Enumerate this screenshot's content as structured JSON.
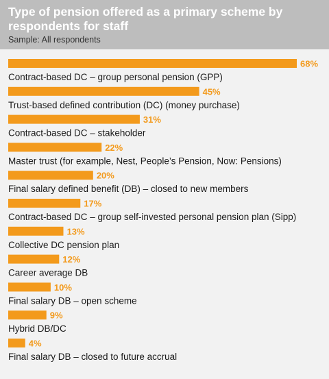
{
  "header": {
    "title": "Type of pension offered as a primary scheme by respondents for staff",
    "subtitle": "Sample: All respondents"
  },
  "colors": {
    "bar": "#f39a1c",
    "value_label": "#f39a1c",
    "header_bg": "#bdbdbd",
    "card_bg": "#f2f2f2"
  },
  "chart_data": {
    "type": "bar",
    "orientation": "horizontal",
    "title": "Type of pension offered as a primary scheme by respondents for staff",
    "subtitle": "Sample: All respondents",
    "categories": [
      "Contract-based DC – group personal pension (GPP)",
      "Trust-based defined contribution (DC) (money purchase)",
      "Contract-based DC – stakeholder",
      "Master trust (for example, Nest, People’s Pension, Now: Pensions)",
      "Final salary defined benefit (DB) – closed to new members",
      "Contract-based DC – group self-invested personal pension plan (Sipp)",
      "Collective DC pension plan",
      "Career average DB",
      "Final salary DB – open scheme",
      "Hybrid DB/DC",
      "Final salary DB – closed to future accrual"
    ],
    "values": [
      68,
      45,
      31,
      22,
      20,
      17,
      13,
      12,
      10,
      9,
      4
    ],
    "value_labels": [
      "68%",
      "45%",
      "31%",
      "22%",
      "20%",
      "17%",
      "13%",
      "12%",
      "10%",
      "9%",
      "4%"
    ],
    "unit": "%",
    "xlim": [
      0,
      68
    ],
    "grid": false,
    "legend": "none"
  }
}
